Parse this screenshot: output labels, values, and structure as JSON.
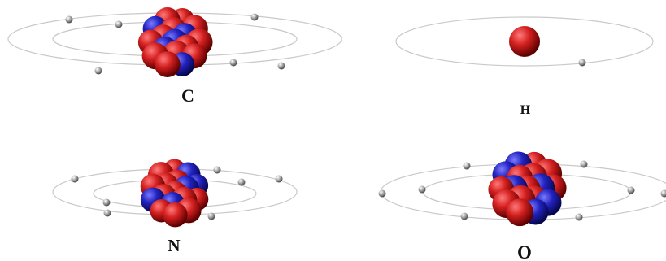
{
  "atoms": [
    {
      "symbol": "C",
      "element": "carbon"
    },
    {
      "symbol": "H",
      "element": "hydrogen"
    },
    {
      "symbol": "N",
      "element": "nitrogen"
    },
    {
      "symbol": "O",
      "element": "oxygen"
    }
  ],
  "colors": {
    "proton": "#c81e1e",
    "neutron": "#2424b8",
    "electron": "#9a9a9a",
    "orbit": "#c9c9c9",
    "label": "#111111"
  }
}
